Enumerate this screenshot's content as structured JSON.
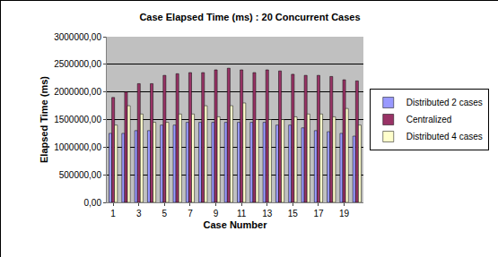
{
  "chart_data": {
    "type": "bar",
    "title": "Case Elapsed Time (ms) : 20 Concurrent Cases",
    "x_label": "Case Number",
    "y_label": "Elapsed Time (ms)",
    "categories": [
      "1",
      null,
      "3",
      null,
      "5",
      null,
      "7",
      null,
      "9",
      null,
      "11",
      null,
      "13",
      null,
      "15",
      null,
      "17",
      null,
      "19",
      null
    ],
    "series": [
      {
        "name": "Distributed 2 cases",
        "color": "#9999FF",
        "values": [
          1250000,
          1250000,
          1300000,
          1300000,
          1400000,
          1400000,
          1450000,
          1450000,
          1450000,
          1450000,
          1450000,
          1450000,
          1450000,
          1400000,
          1400000,
          1350000,
          1300000,
          1280000,
          1250000,
          1200000
        ]
      },
      {
        "name": "Centralized",
        "color": "#993366",
        "values": [
          1900000,
          2000000,
          2150000,
          2150000,
          2300000,
          2330000,
          2350000,
          2350000,
          2400000,
          2430000,
          2400000,
          2350000,
          2400000,
          2380000,
          2320000,
          2300000,
          2300000,
          2280000,
          2220000,
          2200000
        ]
      },
      {
        "name": "Distributed 4 cases",
        "color": "#FFFFCC",
        "values": [
          1400000,
          1750000,
          1600000,
          1450000,
          1450000,
          1600000,
          1600000,
          1750000,
          1550000,
          1750000,
          1800000,
          1500000,
          1500000,
          1500000,
          1550000,
          1600000,
          1600000,
          1550000,
          1700000,
          1400000
        ]
      }
    ],
    "ylim": [
      0,
      3000000
    ],
    "yticks": [
      {
        "value": 0,
        "label": "0,00"
      },
      {
        "value": 500000,
        "label": "500000,00"
      },
      {
        "value": 1000000,
        "label": "1000000,00"
      },
      {
        "value": 1500000,
        "label": "1500000,00"
      },
      {
        "value": 2000000,
        "label": "2000000,00"
      },
      {
        "value": 2500000,
        "label": "2500000,00"
      },
      {
        "value": 3000000,
        "label": "3000000,00"
      }
    ],
    "grid": true,
    "legend": "right"
  }
}
